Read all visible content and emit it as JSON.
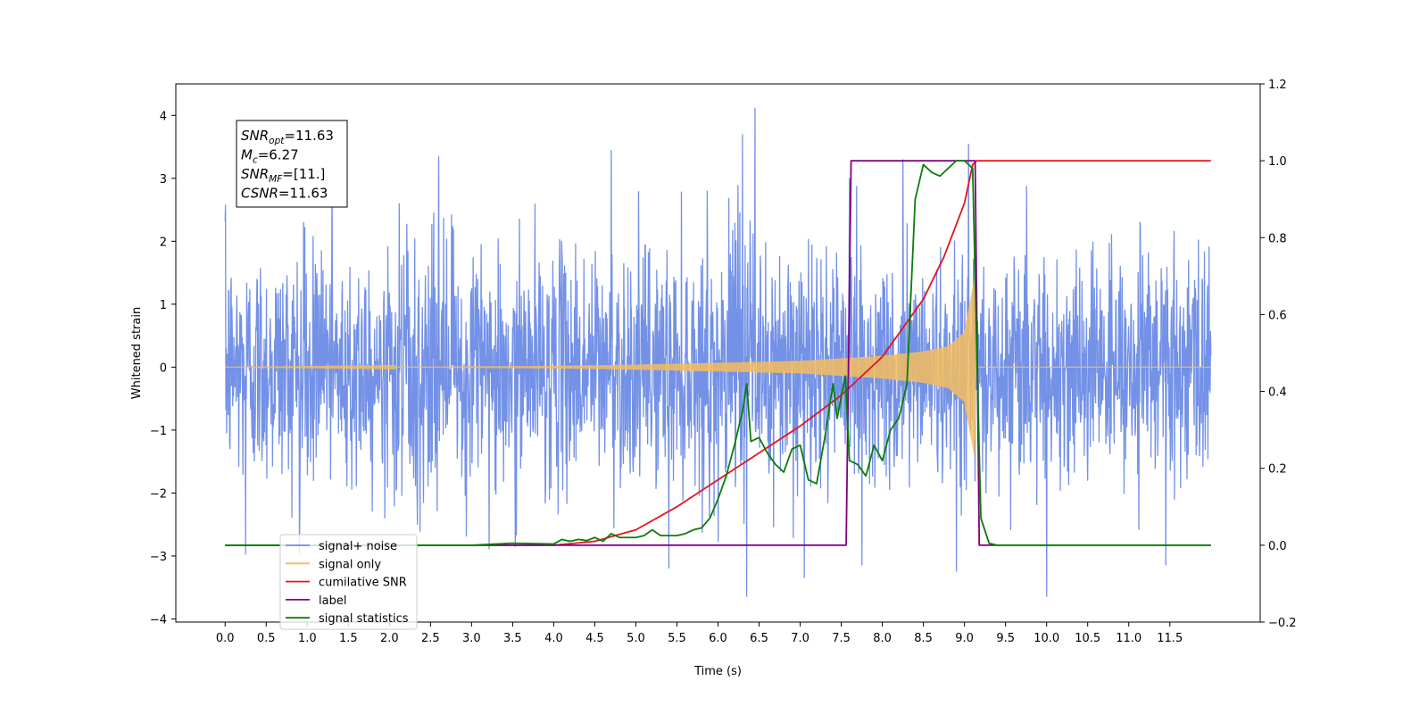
{
  "chart_data": {
    "type": "line",
    "xlabel": "Time (s)",
    "ylabel_left": "Whitened strain",
    "ylabel_right": "",
    "xlim": [
      -0.6,
      12.6
    ],
    "ylim_left": [
      -4.05,
      4.5
    ],
    "ylim_right": [
      -0.2,
      1.2
    ],
    "x_ticks": [
      0.0,
      0.5,
      1.0,
      1.5,
      2.0,
      2.5,
      3.0,
      3.5,
      4.0,
      4.5,
      5.0,
      5.5,
      6.0,
      6.5,
      7.0,
      7.5,
      8.0,
      8.5,
      9.0,
      9.5,
      10.0,
      10.5,
      11.0,
      11.5
    ],
    "x_tick_labels": [
      "0.0",
      "0.5",
      "1.0",
      "1.5",
      "2.0",
      "2.5",
      "3.0",
      "3.5",
      "4.0",
      "4.5",
      "5.0",
      "5.5",
      "6.0",
      "6.5",
      "7.0",
      "7.5",
      "8.0",
      "8.5",
      "9.0",
      "9.5",
      "10.0",
      "10.5",
      "11.0",
      "11.5"
    ],
    "y_left_ticks": [
      -4,
      -3,
      -2,
      -1,
      0,
      1,
      2,
      3,
      4
    ],
    "y_left_tick_labels": [
      "−4",
      "−3",
      "−2",
      "−1",
      "0",
      "1",
      "2",
      "3",
      "4"
    ],
    "y_right_ticks": [
      -0.2,
      0.0,
      0.2,
      0.4,
      0.6,
      0.8,
      1.0,
      1.2
    ],
    "y_right_tick_labels": [
      "−0.2",
      "0.0",
      "0.2",
      "0.4",
      "0.6",
      "0.8",
      "1.0",
      "1.2"
    ],
    "grid": false,
    "legend_placement": "lower-left",
    "annotation": {
      "lines": [
        {
          "base": "SNR",
          "sub": "opt",
          "rest": "=11.63"
        },
        {
          "base": "M",
          "sub": "c",
          "rest": "=6.27"
        },
        {
          "base": "SNR",
          "sub": "MF",
          "rest": "=[11.]"
        },
        {
          "base": "CSNR",
          "sub": "",
          "rest": "=11.63"
        }
      ]
    },
    "series": [
      {
        "name": "signal+ noise",
        "color": "#7391e6",
        "axis": "left",
        "kind": "noise",
        "x_range": [
          0.0,
          12.0
        ],
        "envelope": [
          [
            0.0,
            1.5
          ],
          [
            12.0,
            1.5
          ]
        ],
        "extreme_samples": [
          [
            0.0,
            2.32
          ],
          [
            0.25,
            -2.98
          ],
          [
            1.3,
            3.0
          ],
          [
            2.6,
            3.35
          ],
          [
            4.7,
            3.45
          ],
          [
            5.4,
            -3.2
          ],
          [
            6.3,
            3.7
          ],
          [
            6.35,
            -3.65
          ],
          [
            6.45,
            4.12
          ],
          [
            7.05,
            -3.35
          ],
          [
            7.6,
            3.0
          ],
          [
            7.75,
            -3.15
          ],
          [
            8.25,
            3.3
          ],
          [
            8.9,
            -3.25
          ],
          [
            9.05,
            3.55
          ],
          [
            10.0,
            -3.65
          ],
          [
            11.45,
            -3.15
          ]
        ]
      },
      {
        "name": "signal only",
        "color": "#f5bc5e",
        "axis": "left",
        "kind": "chirp",
        "x_range": [
          0.0,
          12.0
        ],
        "amplitude": [
          [
            0.0,
            0.0
          ],
          [
            2.0,
            0.005
          ],
          [
            4.0,
            0.02
          ],
          [
            5.0,
            0.04
          ],
          [
            6.0,
            0.07
          ],
          [
            7.0,
            0.1
          ],
          [
            7.5,
            0.14
          ],
          [
            8.0,
            0.18
          ],
          [
            8.5,
            0.25
          ],
          [
            8.8,
            0.33
          ],
          [
            9.0,
            0.55
          ],
          [
            9.08,
            1.1
          ],
          [
            9.12,
            1.4
          ],
          [
            9.14,
            0.0
          ],
          [
            12.0,
            0.0
          ]
        ]
      },
      {
        "name": "cumilative SNR",
        "color": "#e8141c",
        "axis": "right",
        "x": [
          0.0,
          3.0,
          4.0,
          4.5,
          5.0,
          5.5,
          6.0,
          6.5,
          7.0,
          7.5,
          8.0,
          8.5,
          8.75,
          9.0,
          9.1,
          9.15,
          12.0
        ],
        "y": [
          0.0,
          0.0,
          0.0,
          0.01,
          0.04,
          0.1,
          0.17,
          0.24,
          0.31,
          0.39,
          0.49,
          0.64,
          0.75,
          0.89,
          0.99,
          1.0,
          1.0
        ]
      },
      {
        "name": "label",
        "color": "#800080",
        "axis": "right",
        "x": [
          0.0,
          7.56,
          7.62,
          9.13,
          9.18,
          12.0
        ],
        "y": [
          0.0,
          0.0,
          1.0,
          1.0,
          0.0,
          0.0
        ]
      },
      {
        "name": "signal statistics",
        "color": "#0a7d0a",
        "axis": "right",
        "x": [
          0.0,
          3.0,
          3.5,
          4.0,
          4.1,
          4.2,
          4.3,
          4.4,
          4.5,
          4.6,
          4.7,
          4.8,
          4.9,
          5.0,
          5.1,
          5.2,
          5.3,
          5.4,
          5.5,
          5.6,
          5.7,
          5.8,
          5.9,
          6.0,
          6.1,
          6.2,
          6.3,
          6.35,
          6.4,
          6.5,
          6.6,
          6.7,
          6.8,
          6.9,
          7.0,
          7.1,
          7.2,
          7.3,
          7.4,
          7.45,
          7.55,
          7.6,
          7.7,
          7.8,
          7.9,
          8.0,
          8.1,
          8.2,
          8.3,
          8.4,
          8.5,
          8.6,
          8.7,
          8.8,
          8.9,
          9.0,
          9.1,
          9.15,
          9.2,
          9.3,
          9.4,
          9.5,
          9.6,
          12.0
        ],
        "y": [
          0.0,
          0.0,
          0.005,
          0.003,
          0.015,
          0.01,
          0.015,
          0.012,
          0.02,
          0.01,
          0.03,
          0.02,
          0.02,
          0.02,
          0.025,
          0.04,
          0.025,
          0.025,
          0.025,
          0.03,
          0.04,
          0.045,
          0.07,
          0.12,
          0.18,
          0.26,
          0.35,
          0.42,
          0.27,
          0.28,
          0.24,
          0.21,
          0.19,
          0.25,
          0.26,
          0.17,
          0.16,
          0.28,
          0.42,
          0.33,
          0.44,
          0.22,
          0.21,
          0.18,
          0.26,
          0.22,
          0.3,
          0.33,
          0.42,
          0.9,
          0.99,
          0.97,
          0.96,
          0.98,
          1.0,
          1.0,
          0.98,
          0.5,
          0.07,
          0.005,
          0.0,
          0.0,
          0.0,
          0.0
        ]
      }
    ]
  }
}
